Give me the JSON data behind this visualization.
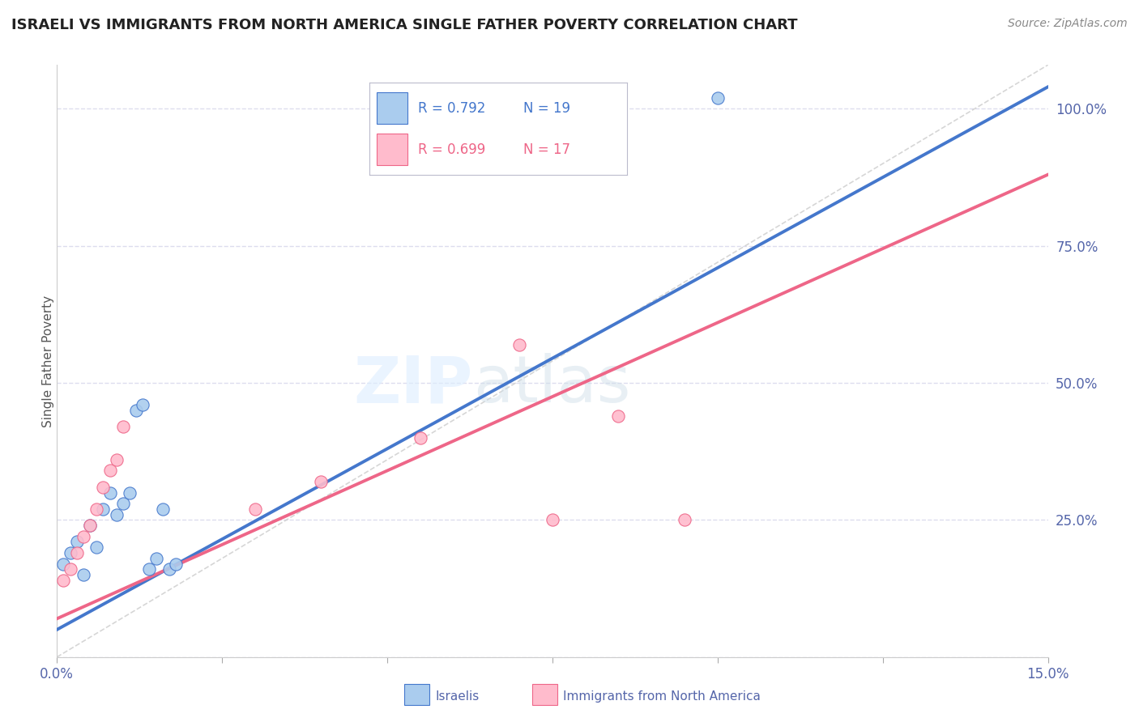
{
  "title": "ISRAELI VS IMMIGRANTS FROM NORTH AMERICA SINGLE FATHER POVERTY CORRELATION CHART",
  "source": "Source: ZipAtlas.com",
  "ylabel": "Single Father Poverty",
  "xlim": [
    0.0,
    0.15
  ],
  "ylim": [
    0.0,
    1.08
  ],
  "y_ticks": [
    0.0,
    0.25,
    0.5,
    0.75,
    1.0
  ],
  "y_tick_labels": [
    "",
    "25.0%",
    "50.0%",
    "75.0%",
    "100.0%"
  ],
  "color_blue": "#AACCEE",
  "color_pink": "#FFBBCC",
  "color_blue_line": "#4477CC",
  "color_pink_line": "#EE6688",
  "color_blue_dark": "#3366BB",
  "color_pink_dark": "#DD5577",
  "watermark_zip": "ZIP",
  "watermark_atlas": "atlas",
  "r_blue": 0.792,
  "n_blue": 19,
  "r_pink": 0.699,
  "n_pink": 17,
  "israelis_x": [
    0.001,
    0.002,
    0.003,
    0.004,
    0.005,
    0.006,
    0.007,
    0.008,
    0.009,
    0.01,
    0.011,
    0.012,
    0.013,
    0.014,
    0.015,
    0.016,
    0.017,
    0.018,
    0.1
  ],
  "israelis_y": [
    0.17,
    0.19,
    0.21,
    0.15,
    0.24,
    0.2,
    0.27,
    0.3,
    0.26,
    0.28,
    0.3,
    0.45,
    0.46,
    0.16,
    0.18,
    0.27,
    0.16,
    0.17,
    1.02
  ],
  "immigrants_x": [
    0.001,
    0.002,
    0.003,
    0.004,
    0.005,
    0.006,
    0.007,
    0.008,
    0.009,
    0.01,
    0.03,
    0.04,
    0.055,
    0.07,
    0.075,
    0.085,
    0.095
  ],
  "immigrants_y": [
    0.14,
    0.16,
    0.19,
    0.22,
    0.24,
    0.27,
    0.31,
    0.34,
    0.36,
    0.42,
    0.27,
    0.32,
    0.4,
    0.57,
    0.25,
    0.44,
    0.25
  ],
  "blue_line_x": [
    0.0,
    0.15
  ],
  "blue_line_y": [
    0.05,
    1.04
  ],
  "pink_line_x": [
    0.0,
    0.15
  ],
  "pink_line_y": [
    0.07,
    0.88
  ],
  "diag_line_x": [
    0.0,
    0.15
  ],
  "diag_line_y": [
    0.0,
    1.08
  ],
  "background_color": "#FFFFFF",
  "grid_color": "#DDDDEE",
  "tick_color": "#5566AA"
}
